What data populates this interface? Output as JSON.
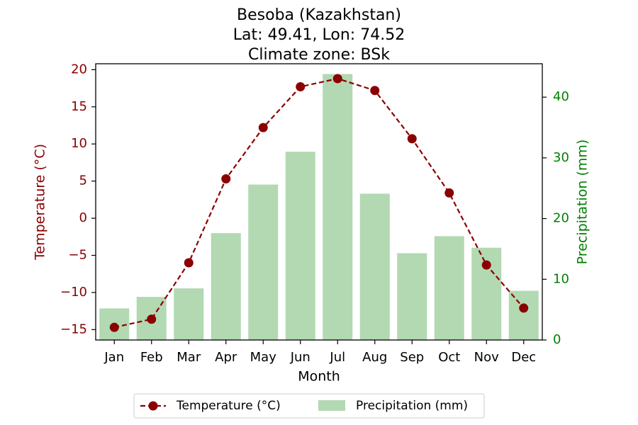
{
  "chart_data": {
    "type": "bar+line",
    "title": [
      "Besoba (Kazakhstan)",
      "Lat: 49.41, Lon: 74.52",
      "Climate zone: BSk"
    ],
    "xlabel": "Month",
    "categories": [
      "Jan",
      "Feb",
      "Mar",
      "Apr",
      "May",
      "Jun",
      "Jul",
      "Aug",
      "Sep",
      "Oct",
      "Nov",
      "Dec"
    ],
    "temperature": {
      "name": "Temperature (°C)",
      "axis": "left",
      "ylabel": "Temperature (°C)",
      "ylim": [
        -16.4,
        20.8
      ],
      "ticks": [
        -15,
        -10,
        -5,
        0,
        5,
        10,
        15,
        20
      ],
      "color": "#8b0000",
      "values": [
        -14.7,
        -13.6,
        -6.0,
        5.3,
        12.2,
        17.7,
        18.8,
        17.2,
        10.7,
        3.4,
        -6.3,
        -12.1
      ]
    },
    "precipitation": {
      "name": "Precipitation (mm)",
      "axis": "right",
      "ylabel": "Precipitation (mm)",
      "ylim": [
        0,
        45.5
      ],
      "ticks": [
        0,
        10,
        20,
        30,
        40
      ],
      "color": "#008000",
      "bar_color": "#b2d9b2",
      "values": [
        5.2,
        7.1,
        8.5,
        17.6,
        25.6,
        31.0,
        43.8,
        24.1,
        14.3,
        17.1,
        15.2,
        8.1
      ]
    },
    "grid": false,
    "legend_position": "bottom-center"
  }
}
